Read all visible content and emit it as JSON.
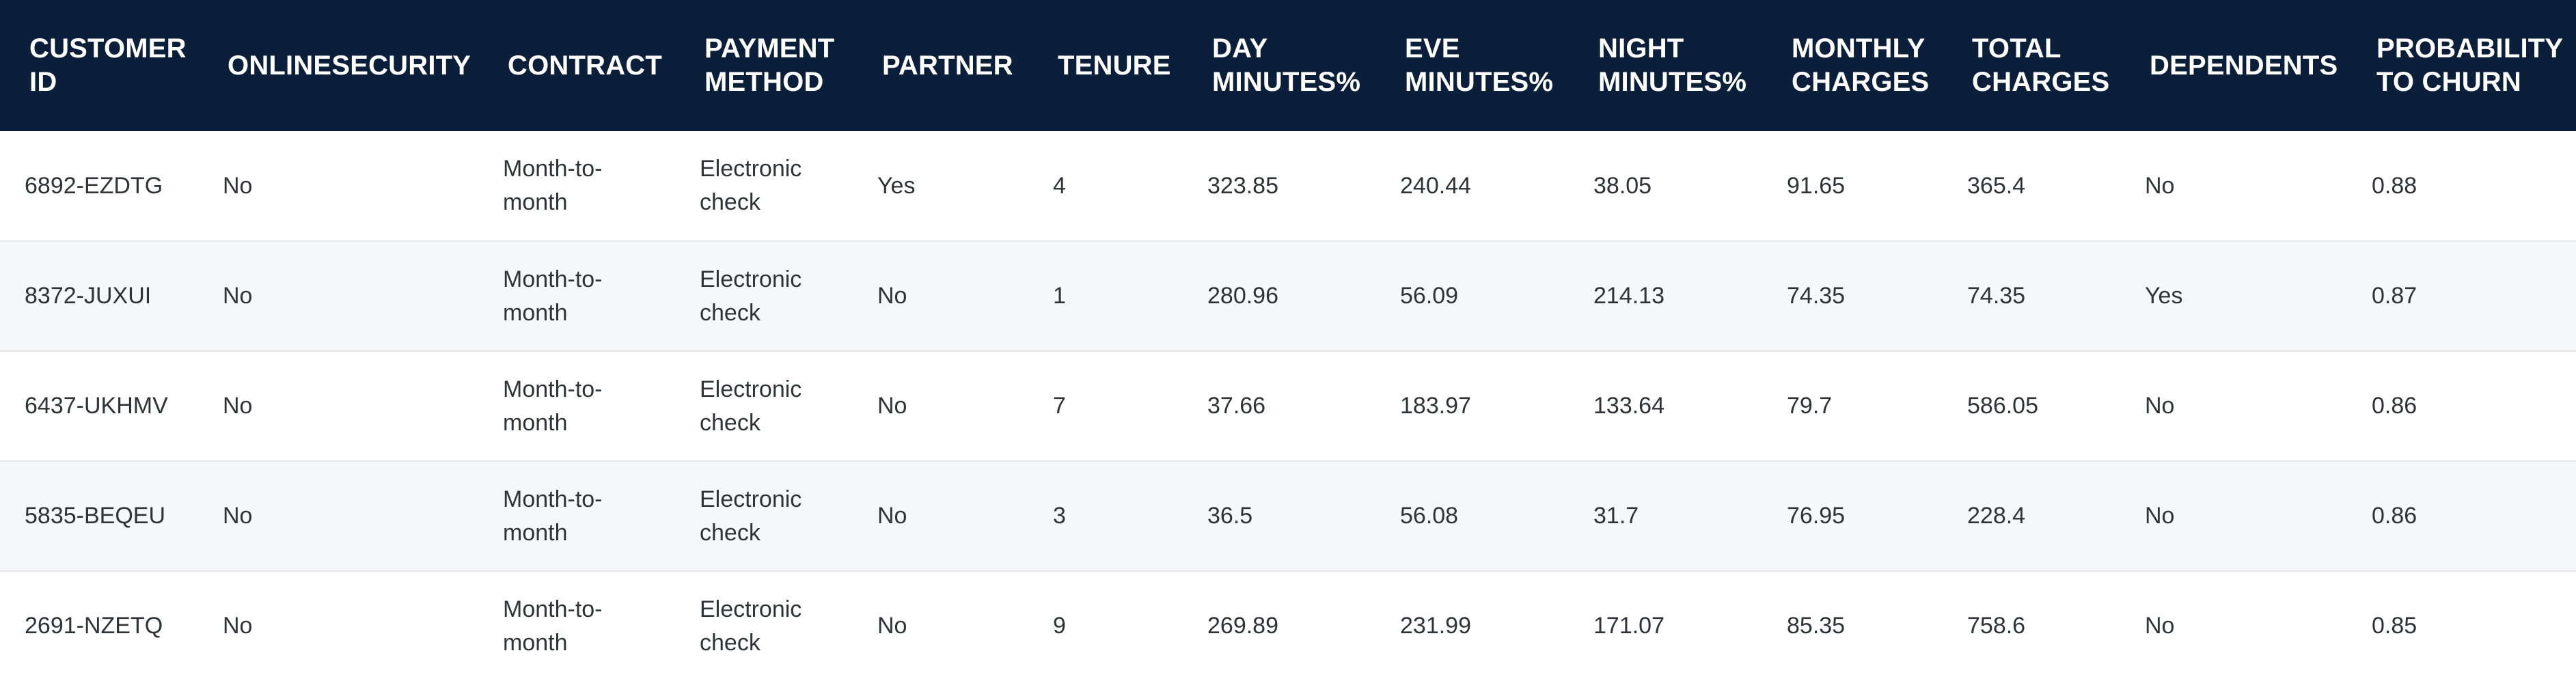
{
  "table": {
    "columns": [
      "CUSTOMER ID",
      "ONLINESECURITY",
      "CONTRACT",
      "PAYMENT METHOD",
      "PARTNER",
      "TENURE",
      "DAY MINUTES%",
      "EVE MINUTES%",
      "NIGHT MINUTES%",
      "MONTHLY CHARGES",
      "TOTAL CHARGES",
      "DEPENDENTS",
      "PROBABILITY TO CHURN"
    ],
    "rows": [
      [
        "6892-EZDTG",
        "No",
        "Month-to-month",
        "Electronic check",
        "Yes",
        "4",
        "323.85",
        "240.44",
        "38.05",
        "91.65",
        "365.4",
        "No",
        "0.88"
      ],
      [
        "8372-JUXUI",
        "No",
        "Month-to-month",
        "Electronic check",
        "No",
        "1",
        "280.96",
        "56.09",
        "214.13",
        "74.35",
        "74.35",
        "Yes",
        "0.87"
      ],
      [
        "6437-UKHMV",
        "No",
        "Month-to-month",
        "Electronic check",
        "No",
        "7",
        "37.66",
        "183.97",
        "133.64",
        "79.7",
        "586.05",
        "No",
        "0.86"
      ],
      [
        "5835-BEQEU",
        "No",
        "Month-to-month",
        "Electronic check",
        "No",
        "3",
        "36.5",
        "56.08",
        "31.7",
        "76.95",
        "228.4",
        "No",
        "0.86"
      ],
      [
        "2691-NZETQ",
        "No",
        "Month-to-month",
        "Electronic check",
        "No",
        "9",
        "269.89",
        "231.99",
        "171.07",
        "85.35",
        "758.6",
        "No",
        "0.85"
      ]
    ]
  },
  "colors": {
    "header_background": "#0b1f3a",
    "header_text": "#ffffff",
    "row_alt_background": "#f6f7f9",
    "row_border": "#e3e6ea",
    "cell_text": "#2f3338"
  }
}
